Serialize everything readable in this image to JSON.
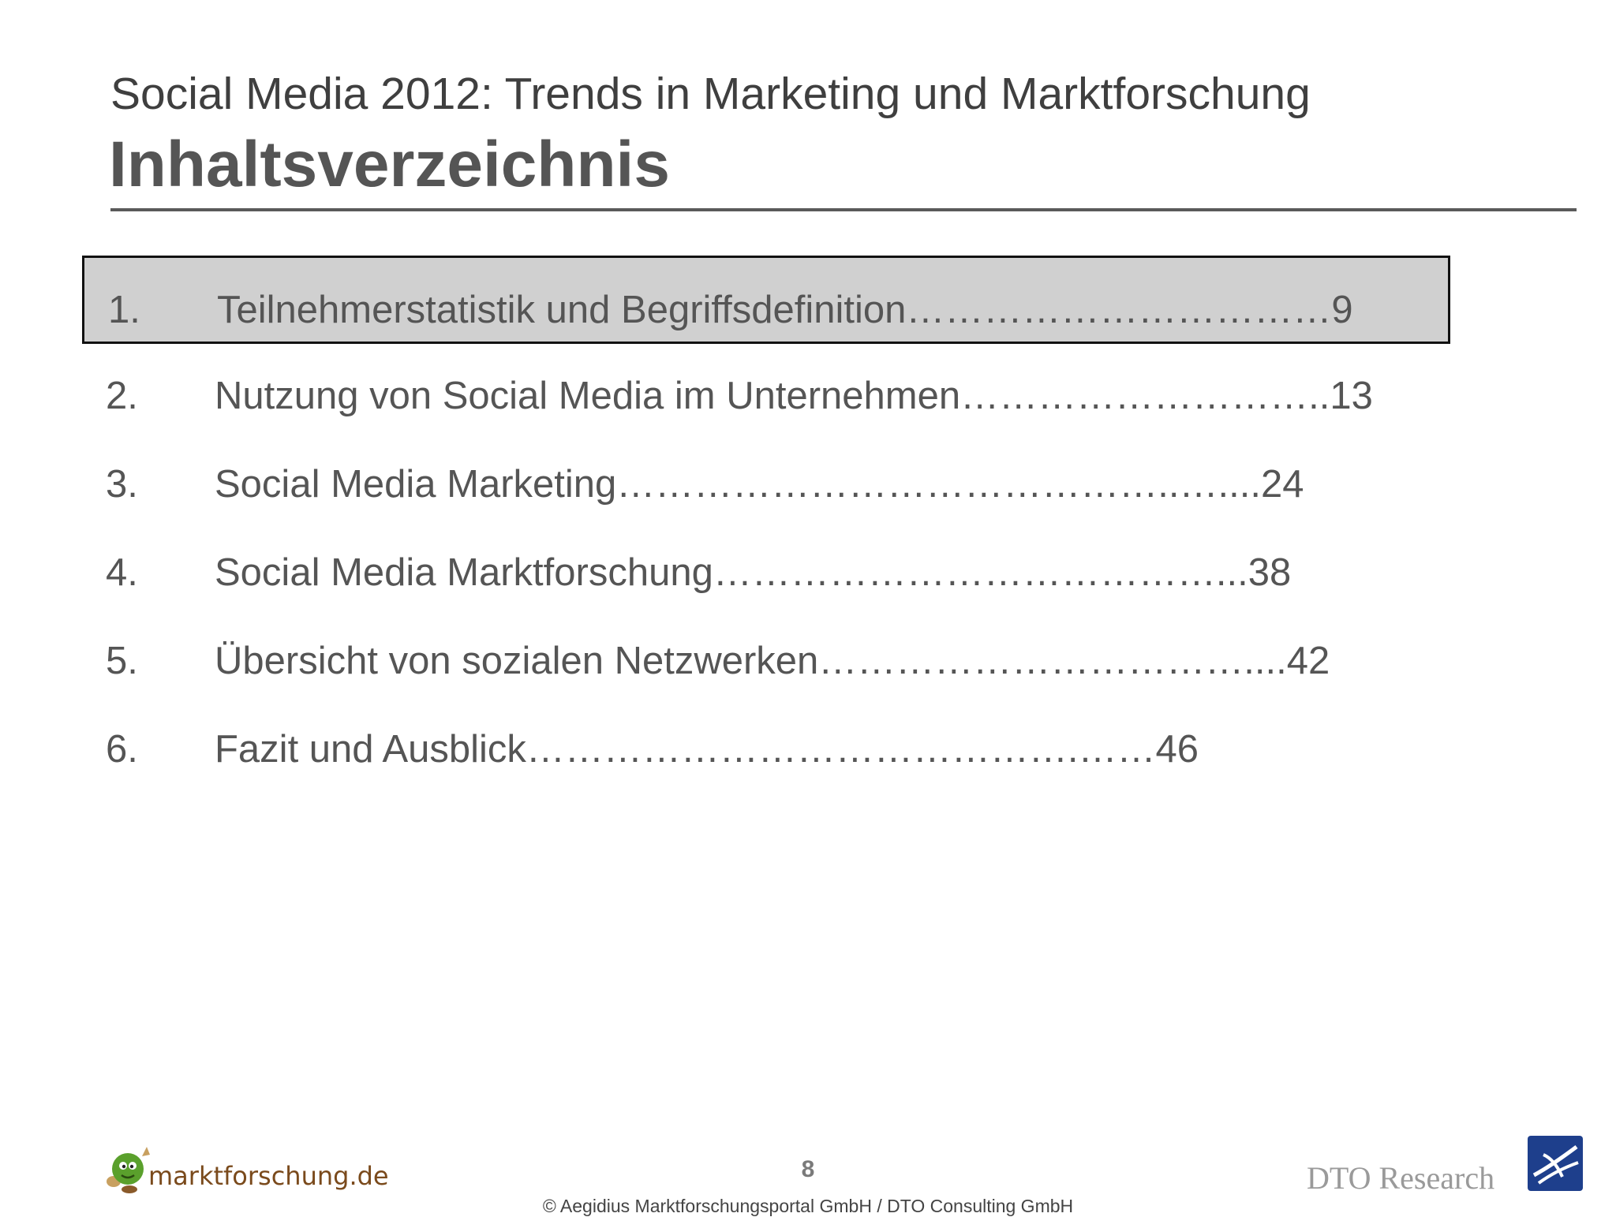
{
  "header": {
    "subtitle": "Social Media 2012: Trends in Marketing und Marktforschung",
    "title": "Inhaltsverzeichnis"
  },
  "toc": [
    {
      "number": "1.",
      "text": "Teilnehmerstatistik und Begriffsdefinition",
      "dots": "……………………………",
      "page": "9",
      "active": true
    },
    {
      "number": "2.",
      "text": "Nutzung von Social Media im Unternehmen",
      "dots": "………………………..",
      "page": "13",
      "active": false
    },
    {
      "number": "3.",
      "text": "Social Media Marketing",
      "dots": "……………………………………..…....",
      "page": "24",
      "active": false
    },
    {
      "number": "4.",
      "text": "Social Media Marktforschung",
      "dots": "…………………………………...",
      "page": "38",
      "active": false
    },
    {
      "number": "5.",
      "text": "Übersicht von sozialen Netzwerken",
      "dots": "……………………………....",
      "page": "42",
      "active": false
    },
    {
      "number": "6.",
      "text": "Fazit und Ausblick",
      "dots": "…………………………………….……",
      "page": "46",
      "active": false
    }
  ],
  "footer": {
    "page_number": "8",
    "copyright": "© Aegidius Marktforschungsportal GmbH / DTO Consulting GmbH",
    "logo_left": "marktforschung.de",
    "logo_right": "DTO Research"
  },
  "colors": {
    "active_bg": "#d0d0d0",
    "text": "#555555",
    "logo_blue": "#1e3f8c",
    "logo_green": "#5aa02c"
  },
  "icons": {
    "logo_left_mark": "green-mascot-icon",
    "logo_right_mark": "dto-swoosh-icon"
  }
}
